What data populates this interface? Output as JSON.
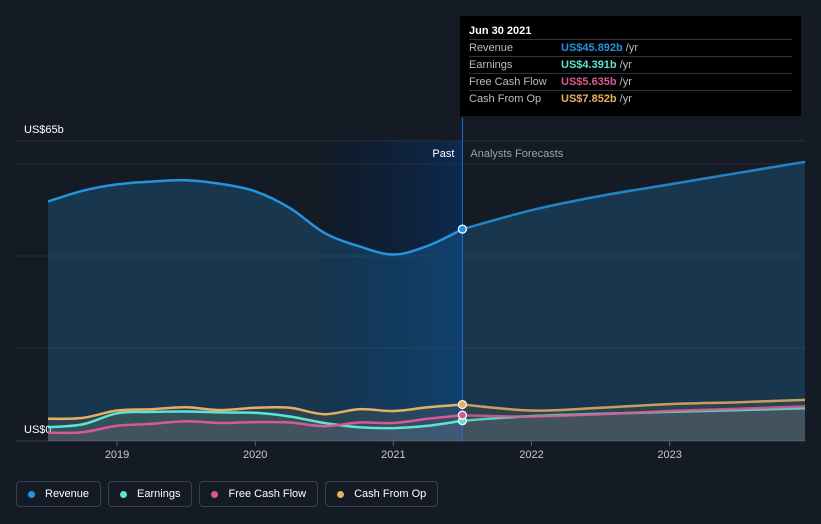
{
  "tooltip": {
    "date": "Jun 30 2021",
    "rows": [
      {
        "label": "Revenue",
        "value": "US$45.892b",
        "unit": "/yr",
        "color": "#2394df"
      },
      {
        "label": "Earnings",
        "value": "US$4.391b",
        "unit": "/yr",
        "color": "#5ce5d0"
      },
      {
        "label": "Free Cash Flow",
        "value": "US$5.635b",
        "unit": "/yr",
        "color": "#d85b8f"
      },
      {
        "label": "Cash From Op",
        "value": "US$7.852b",
        "unit": "/yr",
        "color": "#e8ae62"
      }
    ]
  },
  "legend": [
    {
      "label": "Revenue",
      "color": "#2394df"
    },
    {
      "label": "Earnings",
      "color": "#5ce5d0"
    },
    {
      "label": "Free Cash Flow",
      "color": "#d85b8f"
    },
    {
      "label": "Cash From Op",
      "color": "#e8ae62"
    }
  ],
  "chart_data": {
    "type": "line",
    "title": "",
    "y_top_label": "US$65b",
    "y_bottom_label": "US$0",
    "ylim": [
      0,
      65
    ],
    "xlim": [
      2018.5,
      2023.98
    ],
    "x_ticks": [
      {
        "value": 2019,
        "label": "2019"
      },
      {
        "value": 2020,
        "label": "2020"
      },
      {
        "value": 2021,
        "label": "2021"
      },
      {
        "value": 2022,
        "label": "2022"
      },
      {
        "value": 2023,
        "label": "2023"
      }
    ],
    "past_label": "Past",
    "forecast_label": "Analysts Forecasts",
    "past_region": [
      2020.5,
      2021.5
    ],
    "divider_x": 2021.5,
    "series": [
      {
        "name": "Revenue",
        "color": "#2394df",
        "points": [
          [
            2018.5,
            51.9
          ],
          [
            2018.75,
            54.2
          ],
          [
            2019.0,
            55.6
          ],
          [
            2019.25,
            56.2
          ],
          [
            2019.5,
            56.5
          ],
          [
            2019.75,
            55.7
          ],
          [
            2020.0,
            54.1
          ],
          [
            2020.25,
            50.5
          ],
          [
            2020.5,
            45.1
          ],
          [
            2020.75,
            42.2
          ],
          [
            2021.0,
            40.4
          ],
          [
            2021.25,
            42.3
          ],
          [
            2021.5,
            45.9
          ]
        ],
        "forecast": [
          [
            2021.5,
            45.9
          ],
          [
            2022.0,
            50.0
          ],
          [
            2022.5,
            53.1
          ],
          [
            2023.0,
            55.6
          ],
          [
            2023.5,
            58.1
          ],
          [
            2023.98,
            60.5
          ]
        ]
      },
      {
        "name": "Earnings",
        "color": "#5ce5d0",
        "points": [
          [
            2018.5,
            3.0
          ],
          [
            2018.75,
            3.6
          ],
          [
            2019.0,
            6.0
          ],
          [
            2019.25,
            6.3
          ],
          [
            2019.5,
            6.4
          ],
          [
            2019.75,
            6.2
          ],
          [
            2020.0,
            6.1
          ],
          [
            2020.25,
            5.3
          ],
          [
            2020.5,
            3.9
          ],
          [
            2020.75,
            3.0
          ],
          [
            2021.0,
            2.8
          ],
          [
            2021.25,
            3.3
          ],
          [
            2021.5,
            4.4
          ]
        ],
        "forecast": [
          [
            2021.5,
            4.4
          ],
          [
            2022.0,
            5.4
          ],
          [
            2022.5,
            5.9
          ],
          [
            2023.0,
            6.3
          ],
          [
            2023.5,
            6.7
          ],
          [
            2023.98,
            7.1
          ]
        ]
      },
      {
        "name": "Free Cash Flow",
        "color": "#d85b8f",
        "points": [
          [
            2018.5,
            1.8
          ],
          [
            2018.75,
            1.9
          ],
          [
            2019.0,
            3.3
          ],
          [
            2019.25,
            3.7
          ],
          [
            2019.5,
            4.3
          ],
          [
            2019.75,
            3.9
          ],
          [
            2020.0,
            4.1
          ],
          [
            2020.25,
            4.0
          ],
          [
            2020.5,
            3.2
          ],
          [
            2020.75,
            4.0
          ],
          [
            2021.0,
            3.9
          ],
          [
            2021.25,
            4.8
          ],
          [
            2021.5,
            5.6
          ]
        ],
        "forecast": [
          [
            2021.5,
            5.6
          ],
          [
            2022.0,
            5.3
          ],
          [
            2022.5,
            5.8
          ],
          [
            2023.0,
            6.5
          ],
          [
            2023.5,
            7.0
          ],
          [
            2023.98,
            7.5
          ]
        ]
      },
      {
        "name": "Cash From Op",
        "color": "#e8ae62",
        "points": [
          [
            2018.5,
            4.8
          ],
          [
            2018.75,
            5.0
          ],
          [
            2019.0,
            6.6
          ],
          [
            2019.25,
            6.9
          ],
          [
            2019.5,
            7.3
          ],
          [
            2019.75,
            6.7
          ],
          [
            2020.0,
            7.2
          ],
          [
            2020.25,
            7.2
          ],
          [
            2020.5,
            5.8
          ],
          [
            2020.75,
            6.9
          ],
          [
            2021.0,
            6.5
          ],
          [
            2021.25,
            7.3
          ],
          [
            2021.5,
            7.9
          ]
        ],
        "forecast": [
          [
            2021.5,
            7.9
          ],
          [
            2022.0,
            6.6
          ],
          [
            2022.5,
            7.2
          ],
          [
            2023.0,
            8.0
          ],
          [
            2023.5,
            8.4
          ],
          [
            2023.98,
            8.9
          ]
        ]
      }
    ]
  }
}
